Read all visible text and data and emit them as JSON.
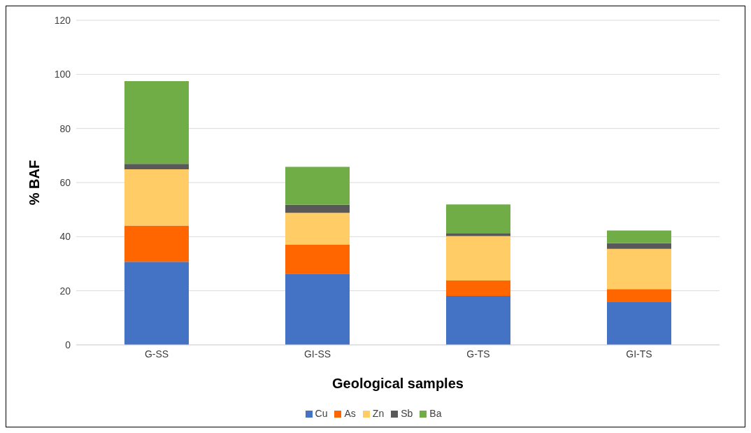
{
  "chart_data": {
    "type": "bar",
    "stacked": true,
    "xlabel": "Geological samples",
    "ylabel": "% BAF",
    "categories": [
      "G-SS",
      "GI-SS",
      "G-TS",
      "GI-TS"
    ],
    "series": [
      {
        "name": "Cu",
        "color": "#4472c4",
        "values": [
          30.7,
          26.3,
          18.1,
          15.8
        ]
      },
      {
        "name": "As",
        "color": "#ff6600",
        "values": [
          13.4,
          10.8,
          5.7,
          4.8
        ]
      },
      {
        "name": "Zn",
        "color": "#ffcc66",
        "values": [
          20.8,
          11.7,
          16.4,
          14.9
        ]
      },
      {
        "name": "Sb",
        "color": "#595959",
        "values": [
          2.0,
          3.0,
          1.1,
          2.1
        ]
      },
      {
        "name": "Ba",
        "color": "#70ad47",
        "values": [
          30.6,
          14.0,
          10.6,
          4.7
        ]
      }
    ],
    "ylim": [
      0,
      120
    ],
    "yticks": [
      0,
      20,
      40,
      60,
      80,
      100,
      120
    ],
    "grid": "y",
    "legend": "bottom"
  }
}
